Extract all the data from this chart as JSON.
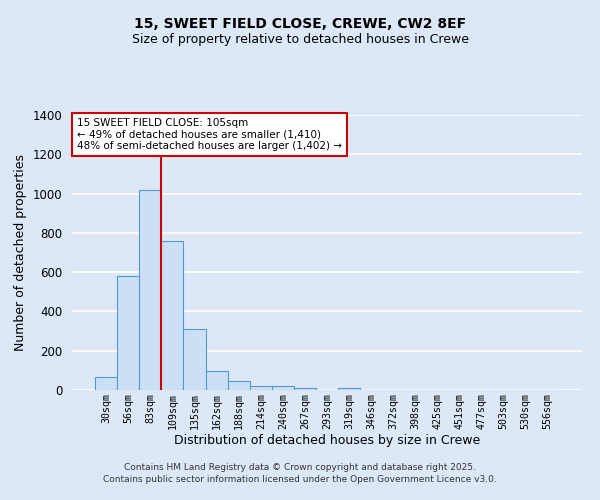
{
  "title1": "15, SWEET FIELD CLOSE, CREWE, CW2 8EF",
  "title2": "Size of property relative to detached houses in Crewe",
  "xlabel": "Distribution of detached houses by size in Crewe",
  "ylabel": "Number of detached properties",
  "bin_labels": [
    "30sqm",
    "56sqm",
    "83sqm",
    "109sqm",
    "135sqm",
    "162sqm",
    "188sqm",
    "214sqm",
    "240sqm",
    "267sqm",
    "293sqm",
    "319sqm",
    "346sqm",
    "372sqm",
    "398sqm",
    "425sqm",
    "451sqm",
    "477sqm",
    "503sqm",
    "530sqm",
    "556sqm"
  ],
  "bar_heights": [
    65,
    580,
    1020,
    760,
    310,
    95,
    45,
    22,
    18,
    10,
    0,
    10,
    0,
    0,
    0,
    0,
    0,
    0,
    0,
    0,
    0
  ],
  "bar_color": "#cce0f5",
  "bar_edge_color": "#5599cc",
  "red_line_index": 3,
  "red_line_color": "#cc0000",
  "ylim": [
    0,
    1400
  ],
  "yticks": [
    0,
    200,
    400,
    600,
    800,
    1000,
    1200,
    1400
  ],
  "annotation_text": "15 SWEET FIELD CLOSE: 105sqm\n← 49% of detached houses are smaller (1,410)\n48% of semi-detached houses are larger (1,402) →",
  "annotation_box_color": "white",
  "annotation_box_edge": "#cc0000",
  "footer1": "Contains HM Land Registry data © Crown copyright and database right 2025.",
  "footer2": "Contains public sector information licensed under the Open Government Licence v3.0.",
  "bg_color": "#dce8f8",
  "grid_color": "white"
}
